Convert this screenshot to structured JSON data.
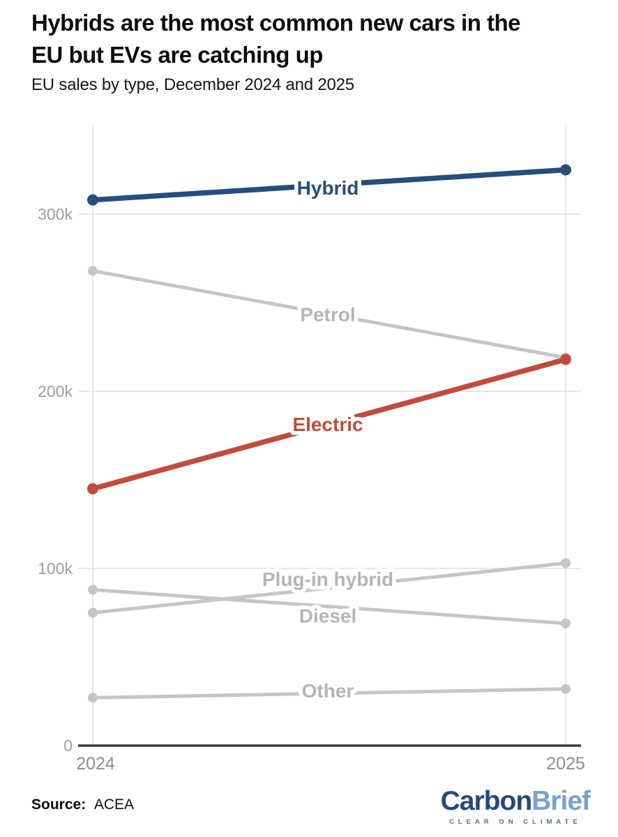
{
  "header": {
    "title_line1": "Hybrids are the most common new cars in the",
    "title_line2": "EU but EVs are catching up",
    "subtitle": "EU sales by type, December 2024 and 2025"
  },
  "chart_data": {
    "type": "line",
    "subtype": "slopegraph",
    "title": "EU sales by type, December 2024 and 2025",
    "x": [
      "2024",
      "2025"
    ],
    "xlabel": "",
    "ylabel": "",
    "ylim": [
      0,
      350000
    ],
    "grid": true,
    "legend_position": "inline-labels",
    "yaxis": {
      "max": 350000,
      "ticks": [
        {
          "value": 0,
          "label": "0"
        },
        {
          "value": 100000,
          "label": "100k"
        },
        {
          "value": 200000,
          "label": "200k"
        },
        {
          "value": 300000,
          "label": "300k"
        }
      ]
    },
    "series": [
      {
        "name": "Hybrid",
        "values": [
          308000,
          325000
        ],
        "color": "#264d7c",
        "label_color": "#264d7c",
        "emphasis": true,
        "label_dy": 4
      },
      {
        "name": "Petrol",
        "values": [
          268000,
          219000
        ],
        "color": "#c5c5c5",
        "label_color": "#b5b5b5",
        "emphasis": false,
        "label_dy": 0
      },
      {
        "name": "Electric",
        "values": [
          145000,
          218000
        ],
        "color": "#c14b3c",
        "label_color": "#c14b3c",
        "emphasis": true,
        "label_dy": 0
      },
      {
        "name": "Plug-in hybrid",
        "values": [
          75000,
          103000
        ],
        "color": "#c5c5c5",
        "label_color": "#b5b5b5",
        "emphasis": false,
        "label_dy": -13
      },
      {
        "name": "Diesel",
        "values": [
          88000,
          69000
        ],
        "color": "#c5c5c5",
        "label_color": "#b5b5b5",
        "emphasis": false,
        "label_dy": 13
      },
      {
        "name": "Other",
        "values": [
          27000,
          32000
        ],
        "color": "#c5c5c5",
        "label_color": "#b5b5b5",
        "emphasis": false,
        "label_dy": -4
      }
    ],
    "colors": {
      "grid": "#e7e7e7",
      "axis": "#3a3a3a",
      "tick_text": "#9e9e9e",
      "x_text": "#8d8d8d"
    }
  },
  "footer": {
    "source_label": "Source:",
    "source_value": "ACEA",
    "logo_part1": "Carbon",
    "logo_part2": "Brief",
    "logo_tagline": "CLEAR ON CLIMATE"
  }
}
